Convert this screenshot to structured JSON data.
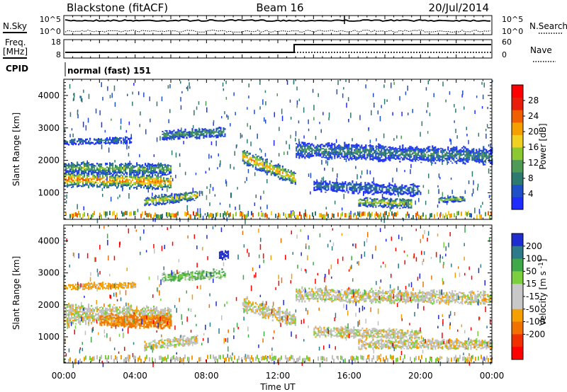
{
  "header": {
    "title_left": "Blackstone (fitACF)",
    "title_center": "Beam 16",
    "title_right": "20/Jul/2014"
  },
  "top_panels": {
    "nsky_label": "N.Sky",
    "nsearch_label": "N.Search",
    "noise_ticks": [
      "10^5",
      "10^0"
    ],
    "freq_label_1": "Freq.",
    "freq_label_2": "[MHz]",
    "freq_ticks": [
      "18",
      "8"
    ],
    "nave_label": "Nave",
    "nave_ticks": [
      "60",
      "0"
    ],
    "cpid_label": "CPID",
    "cpid_text": "normal (fast) 151"
  },
  "colors": {
    "power_scale": [
      "#1e2cff",
      "#2050c8",
      "#2d7a6e",
      "#4f9a55",
      "#8cc832",
      "#f0d020",
      "#f5a000",
      "#f06000",
      "#e81e0a",
      "#ff0000"
    ],
    "velocity_scale": [
      "#1f2ccf",
      "#2f7a8a",
      "#3fa848",
      "#7cd040",
      "#c8c8c8",
      "#c8c8c8",
      "#f5a000",
      "#f07000",
      "#f03000",
      "#ff0000"
    ],
    "ground_scatter": "#c0c0c0"
  },
  "chart_data": [
    {
      "type": "heatmap",
      "name": "power",
      "xlabel": "",
      "ylabel": "Slant Range [km]",
      "x_range_hours": [
        0,
        24
      ],
      "ylim": [
        180,
        4500
      ],
      "yticks": [
        1000,
        2000,
        3000,
        4000
      ],
      "colorbar": {
        "label": "Power [dB]",
        "range": [
          0,
          32
        ],
        "ticks": [
          4,
          8,
          12,
          16,
          20,
          24,
          28
        ]
      },
      "echo_bands": [
        {
          "t0": 0.0,
          "t1": 6.0,
          "r0": 1400,
          "r1": 1300,
          "w": 380,
          "val": 24
        },
        {
          "t0": 0.0,
          "t1": 6.0,
          "r0": 1750,
          "r1": 1700,
          "w": 300,
          "val": 14
        },
        {
          "t0": 0.0,
          "t1": 3.8,
          "r0": 2550,
          "r1": 2600,
          "w": 160,
          "val": 8
        },
        {
          "t0": 4.5,
          "t1": 7.5,
          "r0": 700,
          "r1": 900,
          "w": 250,
          "val": 18
        },
        {
          "t0": 5.5,
          "t1": 9.0,
          "r0": 2750,
          "r1": 2850,
          "w": 250,
          "val": 11
        },
        {
          "t0": 10.0,
          "t1": 13.0,
          "r0": 2100,
          "r1": 1400,
          "w": 380,
          "val": 22
        },
        {
          "t0": 13.0,
          "t1": 24.0,
          "r0": 2300,
          "r1": 2100,
          "w": 420,
          "val": 9
        },
        {
          "t0": 14.0,
          "t1": 20.0,
          "r0": 1200,
          "r1": 1050,
          "w": 300,
          "val": 8
        },
        {
          "t0": 16.5,
          "t1": 19.5,
          "r0": 700,
          "r1": 650,
          "w": 250,
          "val": 18
        },
        {
          "t0": 21.0,
          "t1": 22.5,
          "r0": 750,
          "r1": 800,
          "w": 150,
          "val": 16
        }
      ]
    },
    {
      "type": "heatmap",
      "name": "velocity",
      "xlabel": "Time UT",
      "ylabel": "Slant Range [km]",
      "x_range_hours": [
        0,
        24
      ],
      "xticks": [
        "00:00",
        "04:00",
        "08:00",
        "12:00",
        "16:00",
        "20:00",
        "00:00"
      ],
      "ylim": [
        180,
        4500
      ],
      "yticks": [
        1000,
        2000,
        3000,
        4000
      ],
      "colorbar": {
        "label": "Velocity [m s^-1]",
        "ticks": [
          "200",
          "100",
          "50",
          "15",
          "-15",
          "-50",
          "-100",
          "-200"
        ]
      },
      "echo_bands": [
        {
          "t0": 0.0,
          "t1": 6.0,
          "r0": 1700,
          "r1": 1600,
          "w": 550,
          "val": 0
        },
        {
          "t0": 2.0,
          "t1": 6.0,
          "r0": 1500,
          "r1": 1450,
          "w": 350,
          "val": -60
        },
        {
          "t0": 0.0,
          "t1": 4.0,
          "r0": 2550,
          "r1": 2600,
          "w": 160,
          "val": -30
        },
        {
          "t0": 4.5,
          "t1": 7.5,
          "r0": 700,
          "r1": 900,
          "w": 250,
          "val": 0
        },
        {
          "t0": 5.5,
          "t1": 9.0,
          "r0": 2850,
          "r1": 2950,
          "w": 250,
          "val": 30
        },
        {
          "t0": 10.0,
          "t1": 13.0,
          "r0": 2000,
          "r1": 1500,
          "w": 380,
          "val": 0
        },
        {
          "t0": 13.0,
          "t1": 24.0,
          "r0": 2300,
          "r1": 2200,
          "w": 350,
          "val": 0
        },
        {
          "t0": 14.0,
          "t1": 20.0,
          "r0": 1150,
          "r1": 1050,
          "w": 280,
          "val": 0
        },
        {
          "t0": 16.5,
          "t1": 24.0,
          "r0": 750,
          "r1": 750,
          "w": 250,
          "val": 0
        },
        {
          "t0": 8.7,
          "t1": 9.2,
          "r0": 3550,
          "r1": 3550,
          "w": 250,
          "val": 220
        }
      ]
    }
  ]
}
